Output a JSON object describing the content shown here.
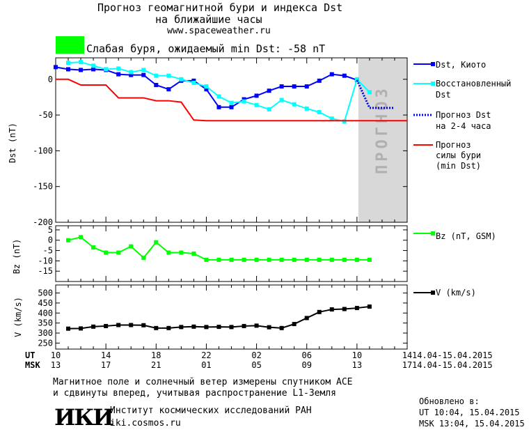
{
  "header": {
    "title_line1": "Прогноз геомагнитной бури и индекса Dst",
    "title_line2": "на ближайшие часы",
    "url": "www.spaceweather.ru",
    "storm_color": "#00ff00",
    "storm_text": "Слабая буря, ожидаемый min Dst: -58 nT"
  },
  "chart_data": [
    {
      "type": "line",
      "panel": "dst",
      "ylabel": "Dst (nT)",
      "ylim": [
        -200,
        30
      ],
      "yticks": [
        0,
        -50,
        -100,
        -150,
        -200
      ],
      "forecast_label": "ПРОГНОЗ",
      "series": [
        {
          "name": "Dst, Киото",
          "color": "#0000ff",
          "marker": "square",
          "x": [
            0,
            1,
            2,
            3,
            4,
            5,
            6,
            7,
            8,
            9,
            10,
            11,
            12,
            13,
            14,
            15,
            16,
            17,
            18,
            19,
            20,
            21,
            22,
            23,
            24
          ],
          "values": [
            17,
            14,
            13,
            14,
            13,
            7,
            6,
            6,
            -8,
            -14,
            -2,
            -2,
            -14,
            -39,
            -39,
            -28,
            -23,
            -16,
            -10,
            -10,
            -10,
            -2,
            7,
            5,
            -1
          ]
        },
        {
          "name": "Восстановленный Dst",
          "color": "#00ffff",
          "marker": "square",
          "x": [
            1,
            2,
            3,
            4,
            5,
            6,
            7,
            8,
            9,
            10,
            11,
            12,
            13,
            14,
            15,
            16,
            17,
            18,
            19,
            20,
            21,
            22,
            23,
            24,
            25
          ],
          "values": [
            23,
            24,
            19,
            14,
            15,
            10,
            13,
            5,
            5,
            0,
            -5,
            -10,
            -24,
            -33,
            -31,
            -36,
            -42,
            -29,
            -35,
            -41,
            -46,
            -55,
            -59,
            0,
            -18
          ]
        },
        {
          "name": "Прогноз Dst на 2-4 часа",
          "color": "#0000ff",
          "style": "dotted",
          "x": [
            24,
            25,
            26,
            27
          ],
          "values": [
            -1,
            -40,
            -40,
            -40
          ]
        },
        {
          "name": "Прогноз силы бури (min Dst)",
          "color": "#ff0000",
          "x": [
            0,
            1,
            2,
            3,
            4,
            5,
            6,
            7,
            8,
            9,
            10,
            11,
            12,
            13,
            14,
            15,
            16,
            17,
            18,
            19,
            20,
            21,
            22,
            23,
            24,
            25,
            26,
            27,
            28
          ],
          "values": [
            0,
            0,
            -8,
            -8,
            -8,
            -26,
            -26,
            -26,
            -30,
            -30,
            -32,
            -57,
            -58,
            -58,
            -58,
            -58,
            -58,
            -58,
            -58,
            -58,
            -58,
            -58,
            -58,
            -58,
            -58,
            -58,
            -58,
            -58,
            -58
          ]
        }
      ]
    },
    {
      "type": "line",
      "panel": "bz",
      "ylabel": "Bz (nT)",
      "ylim": [
        -20,
        7
      ],
      "yticks": [
        5,
        0,
        -5,
        -10,
        -15
      ],
      "series": [
        {
          "name": "Bz (nT, GSM)",
          "color": "#00ff00",
          "marker": "square",
          "x": [
            1,
            2,
            3,
            4,
            5,
            6,
            7,
            8,
            9,
            10,
            11,
            12,
            13,
            14,
            15,
            16,
            17,
            18,
            19,
            20,
            21,
            22,
            23,
            24,
            25
          ],
          "values": [
            0,
            1.5,
            -3.5,
            -6,
            -6,
            -3,
            -8.5,
            -1,
            -6,
            -6,
            -6.5,
            -9.5,
            -9.5,
            -9.5,
            -9.5,
            -9.5,
            -9.5,
            -9.5,
            -9.5,
            -9.5,
            -9.5,
            -9.5,
            -9.5,
            -9.5,
            -9.5
          ]
        }
      ]
    },
    {
      "type": "line",
      "panel": "v",
      "ylabel": "V (km/s)",
      "ylim": [
        220,
        540
      ],
      "yticks": [
        500,
        450,
        400,
        350,
        300,
        250
      ],
      "series": [
        {
          "name": "V (km/s)",
          "color": "#000000",
          "marker": "square",
          "x": [
            1,
            2,
            3,
            4,
            5,
            6,
            7,
            8,
            9,
            10,
            11,
            12,
            13,
            14,
            15,
            16,
            17,
            18,
            19,
            20,
            21,
            22,
            23,
            24,
            25
          ],
          "values": [
            322,
            323,
            332,
            335,
            340,
            340,
            339,
            325,
            325,
            330,
            332,
            330,
            331,
            330,
            335,
            337,
            329,
            325,
            345,
            375,
            405,
            418,
            420,
            425,
            432
          ]
        }
      ]
    }
  ],
  "time_axis": {
    "ut_label": "UT",
    "msk_label": "MSK",
    "ut_ticks": [
      "10",
      "14",
      "18",
      "22",
      "02",
      "06",
      "10",
      "14"
    ],
    "msk_ticks": [
      "13",
      "17",
      "21",
      "01",
      "05",
      "09",
      "13",
      "17"
    ],
    "date_range_ut": "14.04-15.04.2015",
    "date_range_msk": "14.04-15.04.2015"
  },
  "footer": {
    "note_line1": "Магнитное поле и солнечный ветер измерены спутником ACE",
    "note_line2": "и сдвинуты вперед, учитывая распространение L1-Земля",
    "logo": "ИКИ",
    "institute": "Институт космических исследований РАН",
    "site": "iki.cosmos.ru",
    "updated_label": "Обновлено в:",
    "updated_ut": "UT  10:04, 15.04.2015",
    "updated_msk": "MSK 13:04, 15.04.2015"
  },
  "legend": {
    "dst_kyoto": "Dst, Киото",
    "restored_1": "Восстановленный",
    "restored_2": "Dst",
    "forecast_1": "Прогноз Dst",
    "forecast_2": "на 2-4 часа",
    "storm_1": "Прогноз",
    "storm_2": "силы бури",
    "storm_3": "(min Dst)",
    "bz": "Bz (nT, GSM)",
    "v": "V (km/s)"
  }
}
